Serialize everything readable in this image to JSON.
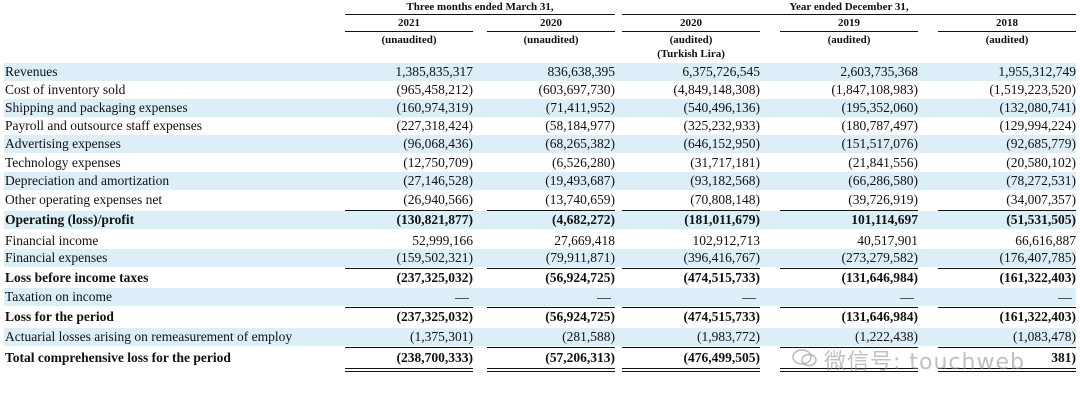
{
  "header": {
    "period_q": "Three months ended March 31,",
    "period_y": "Year ended December 31,",
    "columns": [
      {
        "year": "2021",
        "status": "(unaudited)",
        "extra": ""
      },
      {
        "year": "2020",
        "status": "(unaudited)",
        "extra": ""
      },
      {
        "year": "2020",
        "status": "(audited)",
        "extra": "(Turkish Lira)"
      },
      {
        "year": "2019",
        "status": "(audited)",
        "extra": ""
      },
      {
        "year": "2018",
        "status": "(audited)",
        "extra": ""
      }
    ]
  },
  "rows": [
    {
      "label": "Revenues",
      "values": [
        "1,385,835,317",
        "836,638,395",
        "6,375,726,545",
        "2,603,735,368",
        "1,955,312,749"
      ],
      "bold": false,
      "shade": true
    },
    {
      "label": "Cost of inventory sold",
      "values": [
        "(965,458,212)",
        "(603,697,730)",
        "(4,849,148,308)",
        "(1,847,108,983)",
        "(1,519,223,520)"
      ],
      "bold": false,
      "shade": false
    },
    {
      "label": "Shipping and packaging expenses",
      "values": [
        "(160,974,319)",
        "(71,411,952)",
        "(540,496,136)",
        "(195,352,060)",
        "(132,080,741)"
      ],
      "bold": false,
      "shade": true
    },
    {
      "label": "Payroll and outsource staff expenses",
      "values": [
        "(227,318,424)",
        "(58,184,977)",
        "(325,232,933)",
        "(180,787,497)",
        "(129,994,224)"
      ],
      "bold": false,
      "shade": false
    },
    {
      "label": "Advertising expenses",
      "values": [
        "(96,068,436)",
        "(68,265,382)",
        "(646,152,950)",
        "(151,517,076)",
        "(92,685,779)"
      ],
      "bold": false,
      "shade": true
    },
    {
      "label": "Technology expenses",
      "values": [
        "(12,750,709)",
        "(6,526,280)",
        "(31,717,181)",
        "(21,841,556)",
        "(20,580,102)"
      ],
      "bold": false,
      "shade": false
    },
    {
      "label": "Depreciation and amortization",
      "values": [
        "(27,146,528)",
        "(19,493,687)",
        "(93,182,568)",
        "(66,286,580)",
        "(78,272,531)"
      ],
      "bold": false,
      "shade": true
    },
    {
      "label": "Other operating expenses net",
      "values": [
        "(26,940,566)",
        "(13,740,659)",
        "(70,808,148)",
        "(39,726,919)",
        "(34,007,357)"
      ],
      "bold": false,
      "shade": false
    },
    {
      "label": "Operating (loss)/profit",
      "values": [
        "(130,821,877)",
        "(4,682,272)",
        "(181,011,679)",
        "101,114,697",
        "(51,531,505)"
      ],
      "bold": true,
      "shade": true
    },
    {
      "label": "Financial income",
      "values": [
        "52,999,166",
        "27,669,418",
        "102,912,713",
        "40,517,901",
        "66,616,887"
      ],
      "bold": false,
      "shade": false
    },
    {
      "label": "Financial expenses",
      "values": [
        "(159,502,321)",
        "(79,911,871)",
        "(396,416,767)",
        "(273,279,582)",
        "(176,407,785)"
      ],
      "bold": false,
      "shade": true
    },
    {
      "label": "Loss before income taxes",
      "values": [
        "(237,325,032)",
        "(56,924,725)",
        "(474,515,733)",
        "(131,646,984)",
        "(161,322,403)"
      ],
      "bold": true,
      "shade": false
    },
    {
      "label": "Taxation on income",
      "values": [
        "—",
        "—",
        "—",
        "—",
        "—"
      ],
      "bold": false,
      "shade": true
    },
    {
      "label": "Loss for the period",
      "values": [
        "(237,325,032)",
        "(56,924,725)",
        "(474,515,733)",
        "(131,646,984)",
        "(161,322,403)"
      ],
      "bold": true,
      "shade": false
    },
    {
      "label": "Actuarial losses arising on remeasurement of employ",
      "values": [
        "(1,375,301)",
        "(281,588)",
        "(1,983,772)",
        "(1,222,438)",
        "(1,083,478)"
      ],
      "bold": false,
      "shade": true
    },
    {
      "label": "Total comprehensive loss for the period",
      "values": [
        "(238,700,333)",
        "(57,206,313)",
        "(476,499,505)",
        "",
        "381)"
      ],
      "bold": true,
      "shade": false
    }
  ],
  "watermark": {
    "text": "微信号: touchweb"
  }
}
